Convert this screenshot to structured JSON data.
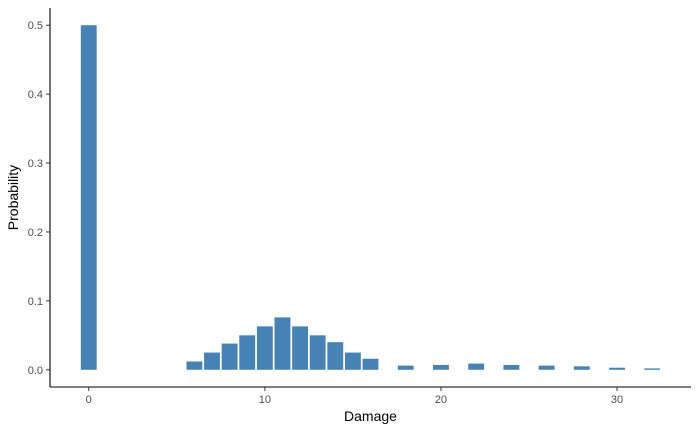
{
  "chart_data": {
    "type": "bar",
    "title": "",
    "xlabel": "Damage",
    "ylabel": "Probability",
    "xlim": [
      -2.2,
      34.2
    ],
    "ylim": [
      -0.025,
      0.525
    ],
    "xticks": [
      0,
      10,
      20,
      30
    ],
    "yticks": [
      0.0,
      0.1,
      0.2,
      0.3,
      0.4,
      0.5
    ],
    "ytick_labels": [
      "0.0",
      "0.1",
      "0.2",
      "0.3",
      "0.4",
      "0.5"
    ],
    "grid": false,
    "legend": "none",
    "bar_color": "#4682B4",
    "x": [
      0,
      6,
      7,
      8,
      9,
      10,
      11,
      12,
      13,
      14,
      15,
      16,
      18,
      20,
      22,
      24,
      26,
      28,
      30,
      32
    ],
    "values": [
      0.5,
      0.012,
      0.025,
      0.038,
      0.05,
      0.063,
      0.076,
      0.063,
      0.05,
      0.04,
      0.025,
      0.016,
      0.006,
      0.007,
      0.009,
      0.007,
      0.006,
      0.005,
      0.003,
      0.002
    ]
  }
}
